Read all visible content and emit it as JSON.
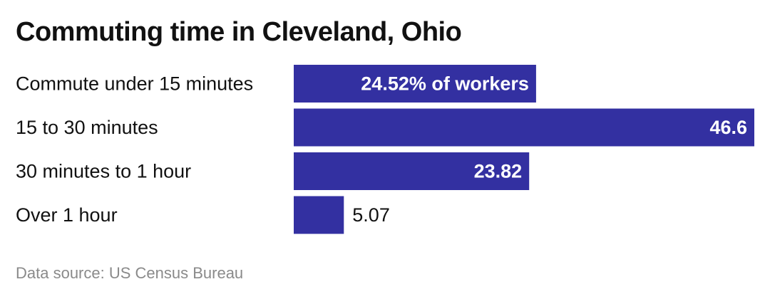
{
  "title": "Commuting time in Cleveland, Ohio",
  "source": "Data source: US Census Bureau",
  "chart_data": {
    "type": "bar",
    "orientation": "horizontal",
    "title": "Commuting time in Cleveland, Ohio",
    "categories": [
      "Commute under 15 minutes",
      "15 to 30 minutes",
      "30 minutes to 1 hour",
      "Over 1 hour"
    ],
    "values": [
      24.52,
      46.6,
      23.82,
      5.07
    ],
    "value_labels": [
      "24.52% of workers",
      "46.6",
      "23.82",
      "5.07"
    ],
    "bar_color": "#3330a1",
    "label_color_inside": "#ffffff",
    "label_color_outside": "#111111",
    "xlim": [
      0,
      46.6
    ],
    "grid": false,
    "legend": "none"
  }
}
